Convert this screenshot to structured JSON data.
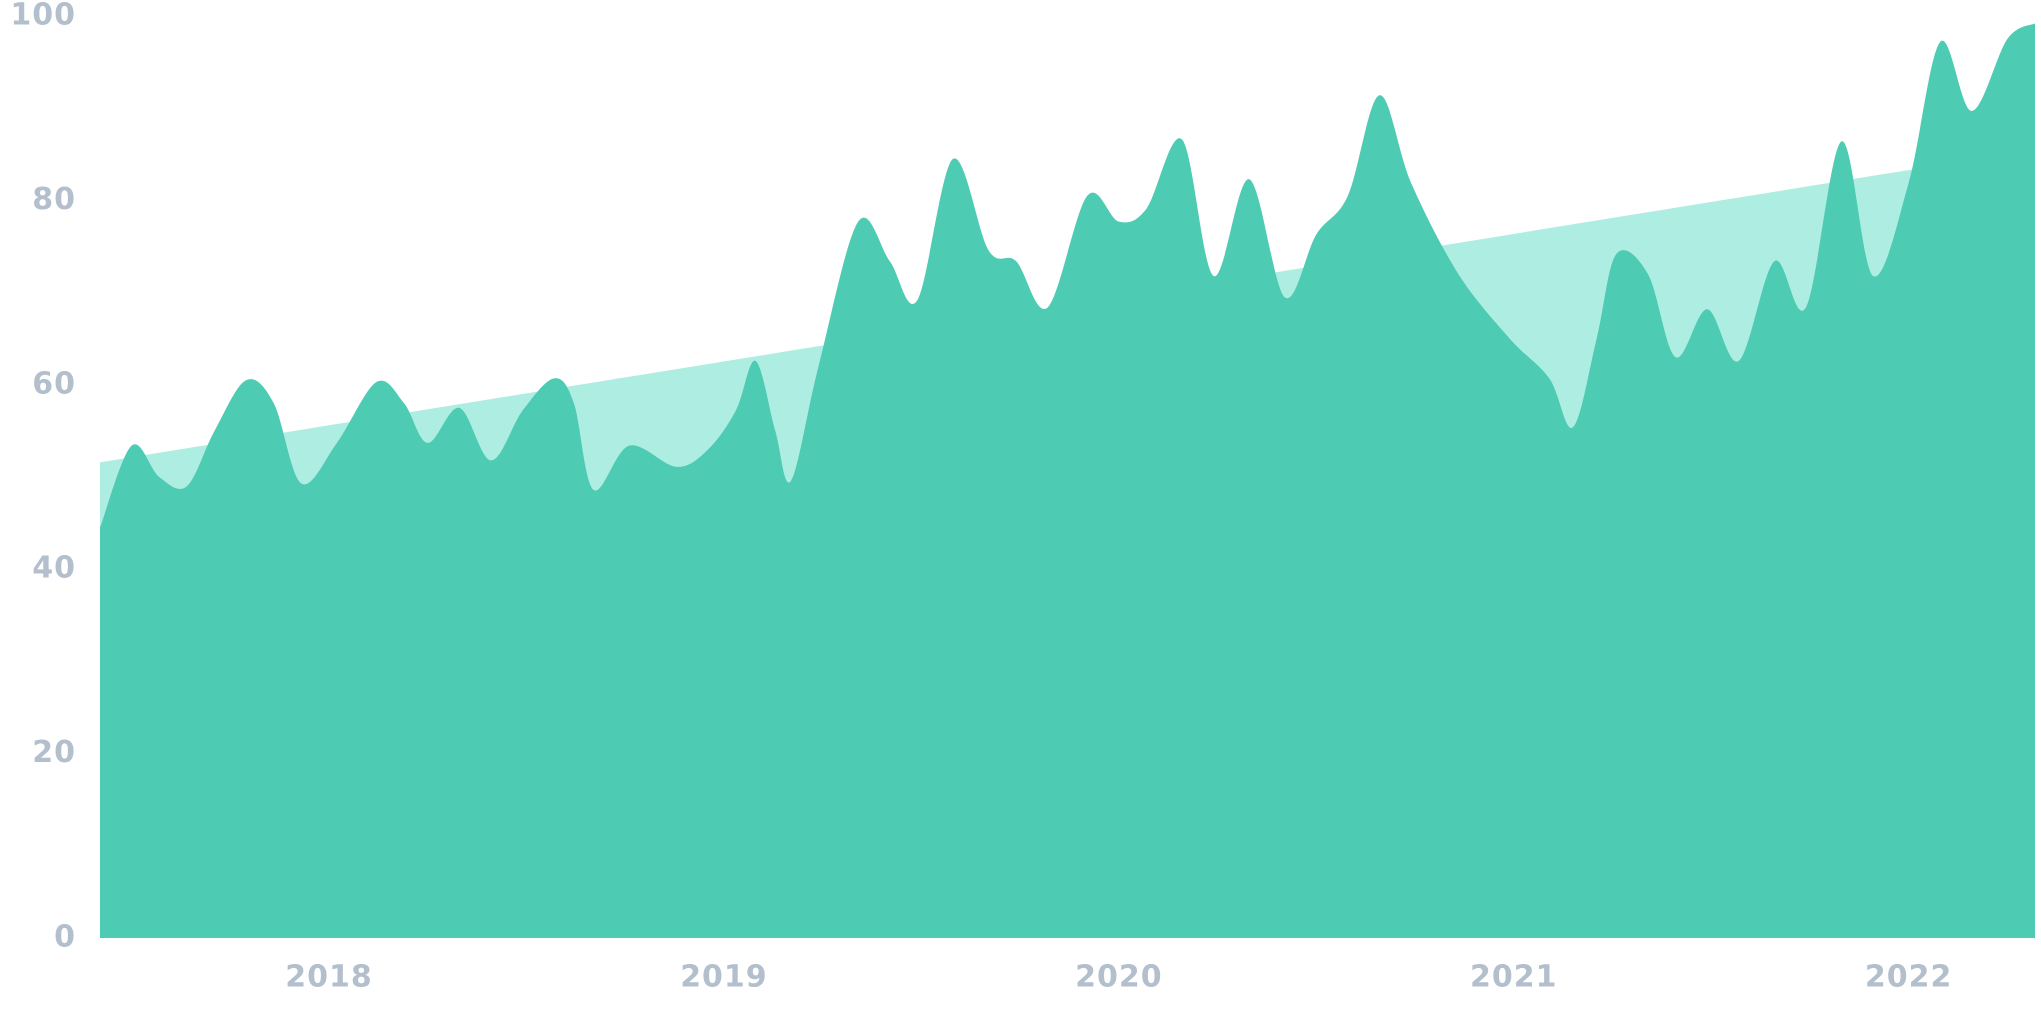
{
  "chart_data": {
    "type": "area",
    "xlim": [
      2017.42,
      2022.32
    ],
    "xticks": [
      2018,
      2019,
      2020,
      2021,
      2022
    ],
    "ylim": [
      0,
      100
    ],
    "yticks": [
      0,
      20,
      40,
      60,
      80,
      100
    ],
    "grid": false,
    "series": [
      {
        "color": "#aeede2",
        "x": [
          2017.42,
          2022.32
        ],
        "values": [
          51.6,
          85.5
        ]
      },
      {
        "color": "#4ecbb3",
        "x": [
          2017.42,
          2017.5,
          2017.57,
          2017.64,
          2017.71,
          2017.79,
          2017.86,
          2017.93,
          2018.02,
          2018.12,
          2018.19,
          2018.25,
          2018.33,
          2018.41,
          2018.49,
          2018.57,
          2018.62,
          2018.67,
          2018.76,
          2018.88,
          2018.96,
          2019.03,
          2019.08,
          2019.13,
          2019.17,
          2019.24,
          2019.34,
          2019.42,
          2019.49,
          2019.58,
          2019.67,
          2019.74,
          2019.82,
          2019.92,
          2020.0,
          2020.07,
          2020.16,
          2020.24,
          2020.33,
          2020.42,
          2020.5,
          2020.58,
          2020.66,
          2020.74,
          2020.86,
          2020.99,
          2021.09,
          2021.15,
          2021.21,
          2021.26,
          2021.34,
          2021.41,
          2021.49,
          2021.57,
          2021.66,
          2021.74,
          2021.83,
          2021.91,
          2022.0,
          2022.08,
          2022.16,
          2022.25,
          2022.32
        ],
        "values": [
          44.5,
          53.4,
          50,
          49,
          55,
          60.5,
          58,
          49.3,
          53.7,
          60.3,
          58,
          53.7,
          57.5,
          51.8,
          57.2,
          60.7,
          58,
          48.6,
          53.4,
          51.1,
          53,
          57.2,
          62.6,
          55,
          49.6,
          62.1,
          77.7,
          73.4,
          69.2,
          84.5,
          74.6,
          73.4,
          68.4,
          80.5,
          77.7,
          79.1,
          86.6,
          71.8,
          82.3,
          69.5,
          76.3,
          80.5,
          91.4,
          81.9,
          72,
          65,
          60.7,
          55.4,
          65,
          74.2,
          72,
          63,
          68.2,
          62.6,
          73.4,
          68.4,
          86.4,
          71.8,
          81.9,
          97.2,
          89.7,
          97.5,
          99.2
        ]
      }
    ]
  }
}
